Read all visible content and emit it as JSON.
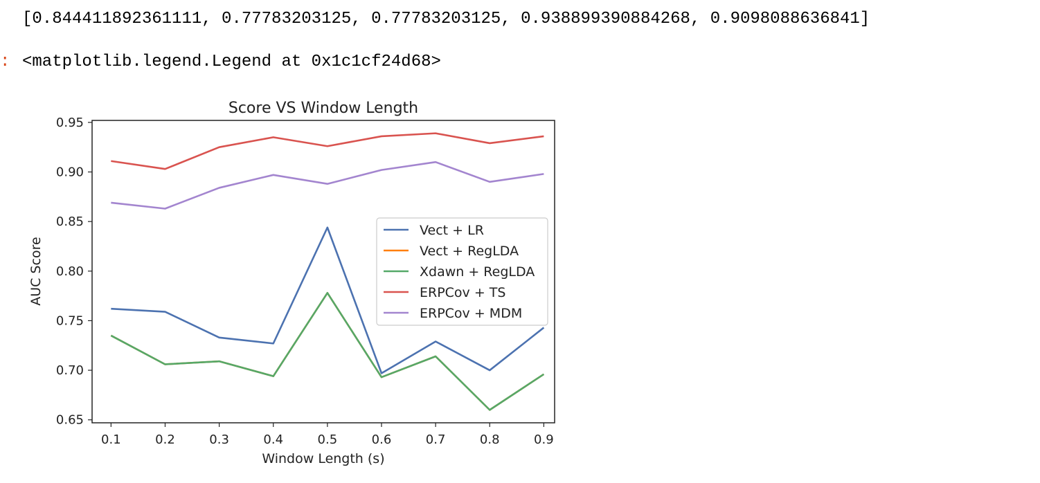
{
  "output": {
    "list_line": "[0.844411892361111, 0.77783203125, 0.77783203125, 0.938899390884268, 0.9098088636841]",
    "prompt_mark": ":",
    "repr_line": "<matplotlib.legend.Legend at 0x1c1cf24d68>"
  },
  "chart_data": {
    "type": "line",
    "title": "Score VS Window Length",
    "xlabel": "Window Length (s)",
    "ylabel": "AUC Score",
    "x": [
      0.1,
      0.2,
      0.3,
      0.4,
      0.5,
      0.6,
      0.7,
      0.8,
      0.9
    ],
    "xticks": [
      "0.1",
      "0.2",
      "0.3",
      "0.4",
      "0.5",
      "0.6",
      "0.7",
      "0.8",
      "0.9"
    ],
    "yticks": [
      "0.65",
      "0.70",
      "0.75",
      "0.80",
      "0.85",
      "0.90",
      "0.95"
    ],
    "xlim": [
      0.065,
      0.92
    ],
    "ylim": [
      0.647,
      0.952
    ],
    "grid": false,
    "legend_position": "center-right",
    "series": [
      {
        "name": "Vect + LR",
        "color": "#4c72b0",
        "values": [
          0.762,
          0.759,
          0.733,
          0.727,
          0.844,
          0.697,
          0.729,
          0.7,
          0.743
        ]
      },
      {
        "name": "Vect + RegLDA",
        "color": "#ff7f0e",
        "values": [
          0.735,
          0.706,
          0.709,
          0.694,
          0.778,
          0.693,
          0.714,
          0.66,
          0.696
        ]
      },
      {
        "name": "Xdawn + RegLDA",
        "color": "#55a868",
        "values": [
          0.735,
          0.706,
          0.709,
          0.694,
          0.778,
          0.693,
          0.714,
          0.66,
          0.696
        ]
      },
      {
        "name": "ERPCov + TS",
        "color": "#d9534f",
        "values": [
          0.911,
          0.903,
          0.925,
          0.935,
          0.926,
          0.936,
          0.939,
          0.929,
          0.936
        ]
      },
      {
        "name": "ERPCov + MDM",
        "color": "#a385cf",
        "values": [
          0.869,
          0.863,
          0.884,
          0.897,
          0.888,
          0.902,
          0.91,
          0.89,
          0.898
        ]
      }
    ]
  }
}
